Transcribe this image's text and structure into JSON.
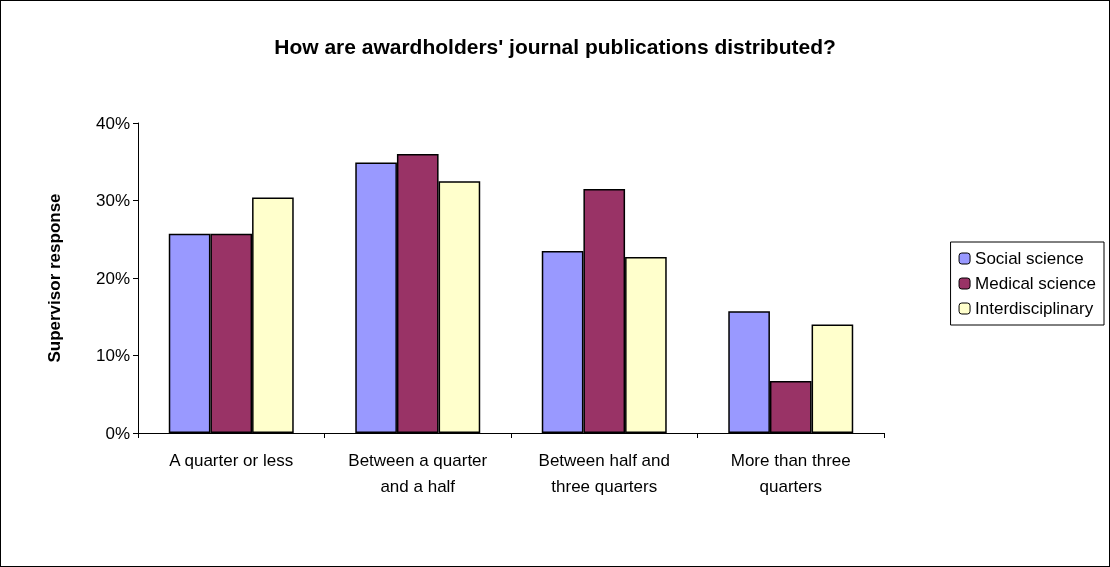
{
  "chart_data": {
    "type": "bar",
    "title": "How are awardholders' journal publications distributed?",
    "ylabel": "Supervisor response",
    "categories": [
      "A quarter or less",
      "Between a quarter and a half",
      "Between half and three quarters",
      "More than three quarters"
    ],
    "series": [
      {
        "name": "Social science",
        "color": "#9999ff",
        "values": [
          25.7,
          34.9,
          23.5,
          15.7
        ]
      },
      {
        "name": "Medical science",
        "color": "#993366",
        "values": [
          25.7,
          36.0,
          31.5,
          6.7
        ]
      },
      {
        "name": "Interdisciplinary",
        "color": "#ffffcc",
        "values": [
          30.4,
          32.5,
          22.7,
          14.0
        ]
      }
    ],
    "ylim": [
      0,
      40
    ],
    "yticks": [
      {
        "value": 0,
        "label": "0%"
      },
      {
        "value": 10,
        "label": "10%"
      },
      {
        "value": 20,
        "label": "20%"
      },
      {
        "value": 30,
        "label": "30%"
      },
      {
        "value": 40,
        "label": "40%"
      }
    ],
    "grid": false,
    "legend": "right"
  }
}
